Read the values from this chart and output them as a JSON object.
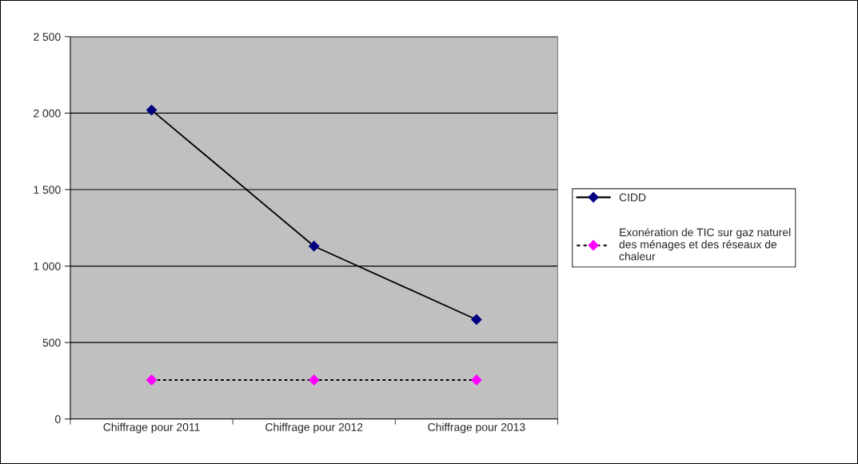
{
  "chart_data": {
    "type": "line",
    "categories": [
      "Chiffrage pour 2011",
      "Chiffrage pour 2012",
      "Chiffrage pour 2013"
    ],
    "series": [
      {
        "name": "CIDD",
        "color": "#000080",
        "line_style": "solid",
        "values": [
          2020,
          1130,
          650
        ]
      },
      {
        "name": "Exonération de TIC sur gaz naturel des ménages et des réseaux de chaleur",
        "color": "#ff00ff",
        "line_style": "dotted",
        "values": [
          255,
          255,
          255
        ]
      }
    ],
    "marker": "diamond",
    "ylim": [
      0,
      2500
    ],
    "yticks": [
      0,
      500,
      {
        "value": 1000,
        "label": "1 000"
      },
      {
        "value": 1500,
        "label": "1 500"
      },
      {
        "value": 2000,
        "label": "2 000"
      },
      {
        "value": 2500,
        "label": "2 500"
      }
    ],
    "grid": "y",
    "legend": "right"
  }
}
